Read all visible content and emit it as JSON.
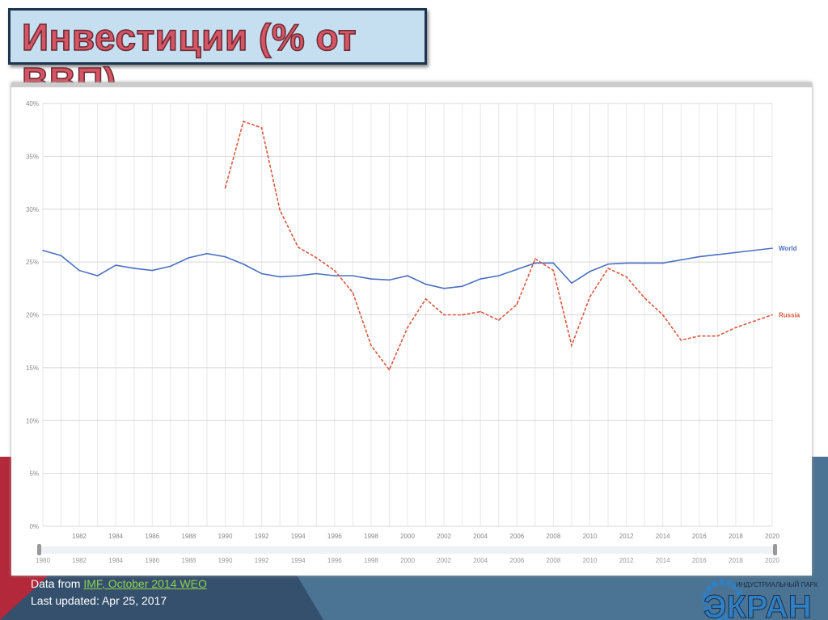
{
  "title": "Инвестиции (% от ВВП)",
  "footer": {
    "data_from": "Data from ",
    "source_link": "IMF, October 2014 WEO",
    "updated": "Last updated: Apr 25, 2017"
  },
  "logo": {
    "small_text": "ИНДУСТРИАЛЬНЫЙ ПАРК",
    "big_text": "ЭКРАН"
  },
  "chart_data": {
    "type": "line",
    "x": [
      1980,
      1981,
      1982,
      1983,
      1984,
      1985,
      1986,
      1987,
      1988,
      1989,
      1990,
      1991,
      1992,
      1993,
      1994,
      1995,
      1996,
      1997,
      1998,
      1999,
      2000,
      2001,
      2002,
      2003,
      2004,
      2005,
      2006,
      2007,
      2008,
      2009,
      2010,
      2011,
      2012,
      2013,
      2014,
      2015,
      2016,
      2017,
      2018,
      2019,
      2020
    ],
    "series": [
      {
        "name": "World",
        "color": "#4a6fc0",
        "dash": false,
        "values": [
          26.1,
          25.6,
          24.2,
          23.7,
          24.7,
          24.4,
          24.2,
          24.6,
          25.4,
          25.8,
          25.5,
          24.8,
          23.9,
          23.6,
          23.7,
          23.9,
          23.7,
          23.7,
          23.4,
          23.3,
          23.7,
          22.9,
          22.5,
          22.7,
          23.4,
          23.7,
          24.3,
          24.9,
          24.9,
          23.0,
          24.1,
          24.8,
          24.9,
          24.9,
          24.9,
          25.2,
          25.5,
          25.7,
          25.9,
          26.1,
          26.3
        ]
      },
      {
        "name": "Russia",
        "color": "#d9583f",
        "dash": true,
        "values": [
          null,
          null,
          null,
          null,
          null,
          null,
          null,
          null,
          null,
          null,
          32.0,
          38.3,
          37.7,
          29.9,
          26.4,
          25.4,
          24.2,
          22.1,
          17.1,
          14.8,
          18.8,
          21.5,
          20.0,
          20.0,
          20.3,
          19.5,
          21.0,
          25.3,
          24.2,
          17.1,
          21.7,
          24.4,
          23.6,
          21.6,
          20.0,
          17.6,
          18.0,
          18.0,
          18.8,
          19.4,
          20.0
        ]
      }
    ],
    "yticks": [
      "0%",
      "5%",
      "10%",
      "15%",
      "20%",
      "25%",
      "30%",
      "35%",
      "40%"
    ],
    "ylim": [
      0,
      40
    ],
    "xticks": [
      "1982",
      "1984",
      "1986",
      "1988",
      "1990",
      "1992",
      "1994",
      "1996",
      "1998",
      "2000",
      "2002",
      "2004",
      "2006",
      "2008",
      "2010",
      "2012",
      "2014",
      "2016",
      "2018",
      "2020"
    ],
    "slider_ticks": [
      "1980",
      "1982",
      "1984",
      "1986",
      "1988",
      "1990",
      "1992",
      "1994",
      "1996",
      "1998",
      "2000",
      "2002",
      "2004",
      "2006",
      "2008",
      "2010",
      "2012",
      "2014",
      "2016",
      "2018",
      "2020"
    ],
    "grid": true,
    "legend": "right, inline at line ends"
  }
}
